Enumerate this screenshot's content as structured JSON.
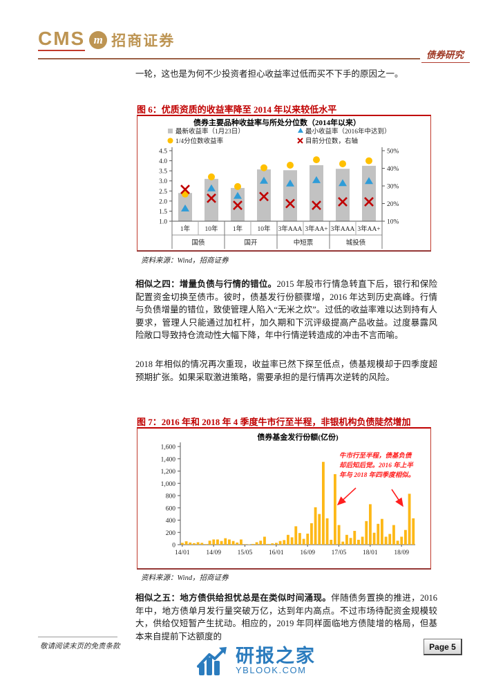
{
  "colors": {
    "brand_gold": "#bd9452",
    "category_red": "#9e3723",
    "figure_red": "#c00000",
    "watermark_blue": "#2b7cbe"
  },
  "header": {
    "logo_cms": "CMS",
    "logo_icon": "m",
    "logo_cn": "招商证券",
    "category": "债券研究"
  },
  "intro_line": "一轮，这也是为何不少投资者担心收益率过低而买不下手的原因之一。",
  "figure6": {
    "title": "图 6：优质资质的收益率降至 2014 年以来较低水平",
    "source": "资料来源：Wind，招商证券"
  },
  "para4": {
    "lead": "相似之四：增量负债与行情的错位。",
    "text": "2015 年股市行情急转直下后，银行和保险配置资金切换至债市。彼时，债基发行份额骤增，2016 年达到历史高峰。行情与负债增量的错位，致使管理人陷入“无米之炊”。过低的收益率难以达到持有人要求，管理人只能通过加杠杆，加久期和下沉评级提高产品收益。过度暴露风险敞口导致持仓流动性大幅下降，年中行情逆转造成的冲击不言而喻。"
  },
  "para_2018": "2018 年相似的情况再次重现，收益率已然下探至低点，债基规模却于四季度超预期扩张。如果采取激进策略，需要承担的是行情再次逆转的风险。",
  "figure7": {
    "title": "图 7：2016 年和 2018 年 4 季度牛市行至半程，非银机构负债陡然增加",
    "source": "资料来源：Wind，招商证券"
  },
  "para5": {
    "lead": "相似之五：地方债供给担忧总是在类似时间涌现。",
    "text": "伴随债务置换的推进，2016 年中，地方债单月发行量突破万亿，达到年内高点。不过市场待配资金规模较大，供给仅短暂产生扰动。相应的，2019 年同样面临地方债陡增的格局，但基本来自提前下达额度的"
  },
  "footer": {
    "disclaimer": "敬请阅读末页的免责条款",
    "page_label": "Page 5",
    "watermark_cn": "研报之家",
    "watermark_en": "YBLOOK.COM"
  },
  "chart_data": [
    {
      "type": "bar",
      "title": "债券主要品种收益率与所处分位数（2014年以来）",
      "groups": [
        "国债",
        "国开",
        "中短票",
        "城投债"
      ],
      "categories": [
        "1年",
        "10年",
        "1年",
        "10年",
        "3年AAA",
        "3年AA+",
        "3年AAA",
        "3年AA+"
      ],
      "ylim_left": [
        1.0,
        4.5
      ],
      "ytick_step_left": 0.5,
      "ylim_right": [
        10,
        50
      ],
      "ytick_step_right": 10,
      "grid": false,
      "legend_position": "top",
      "series": [
        {
          "name": "最新收益率（1月23日）",
          "marker": "bar",
          "axis": "left",
          "color": "#c2c2c2",
          "values": [
            2.4,
            3.1,
            2.65,
            3.57,
            3.53,
            3.78,
            3.6,
            3.75
          ]
        },
        {
          "name": "1/4分位数收益率",
          "marker": "circle",
          "axis": "left",
          "color": "#ffc000",
          "values": [
            2.35,
            3.2,
            2.72,
            3.65,
            3.78,
            4.05,
            3.85,
            4.0
          ]
        },
        {
          "name": "最小收益率（2016年中达到）",
          "marker": "triangle",
          "axis": "left",
          "color": "#2f9cd8",
          "values": [
            1.62,
            2.62,
            2.25,
            3.0,
            2.86,
            3.03,
            2.88,
            2.98
          ]
        },
        {
          "name": "目前分位数，右轴",
          "marker": "x",
          "axis": "right",
          "color": "#c00000",
          "values": [
            28,
            23,
            19,
            24,
            20,
            19,
            21,
            21
          ]
        }
      ]
    },
    {
      "type": "bar",
      "title": "债券基金发行份额(亿份)",
      "bar_color": "#fdb817",
      "ylim": [
        0,
        1600
      ],
      "ytick_step": 200,
      "grid": false,
      "xtick_every": 8,
      "categories": [
        "14/01",
        "14/02",
        "14/03",
        "14/04",
        "14/05",
        "14/06",
        "14/07",
        "14/08",
        "14/09",
        "14/10",
        "14/11",
        "14/12",
        "15/01",
        "15/02",
        "15/03",
        "15/04",
        "15/05",
        "15/06",
        "15/07",
        "15/08",
        "15/09",
        "15/10",
        "15/11",
        "15/12",
        "16/01",
        "16/02",
        "16/03",
        "16/04",
        "16/05",
        "16/06",
        "16/07",
        "16/08",
        "16/09",
        "16/10",
        "16/11",
        "16/12",
        "17/01",
        "17/02",
        "17/03",
        "17/04",
        "17/05",
        "17/06",
        "17/07",
        "17/08",
        "17/09",
        "17/10",
        "17/11",
        "17/12",
        "18/01",
        "18/02",
        "18/03",
        "18/04",
        "18/05",
        "18/06",
        "18/07",
        "18/08",
        "18/09",
        "18/10",
        "18/11",
        "18/12"
      ],
      "values": [
        30,
        55,
        35,
        25,
        40,
        30,
        10,
        65,
        85,
        85,
        60,
        105,
        85,
        60,
        35,
        85,
        8,
        5,
        12,
        40,
        65,
        130,
        12,
        22,
        30,
        60,
        75,
        160,
        120,
        300,
        190,
        95,
        180,
        350,
        610,
        500,
        1350,
        430,
        80,
        1150,
        320,
        50,
        160,
        110,
        225,
        80,
        130,
        385,
        660,
        195,
        340,
        420,
        130,
        175,
        320,
        65,
        130,
        240,
        830,
        430
      ],
      "annotation": {
        "color": "#ff1f1f",
        "lines": [
          "牛市行至半程，债基负债",
          "却后知后觉。2016 年上半",
          "年与 2018 年四季度相似。"
        ]
      }
    }
  ]
}
